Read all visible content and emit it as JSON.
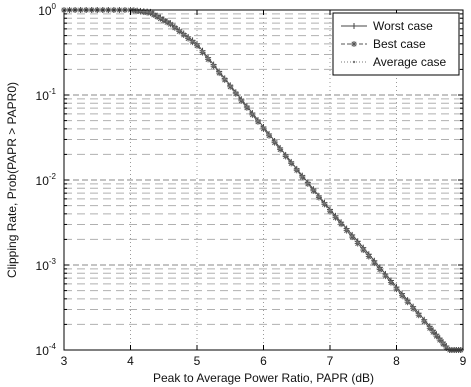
{
  "chart_data": {
    "type": "line",
    "xlabel": "Peak to Average Power Ratio, PAPR (dB)",
    "ylabel": "Clipping Rate, Prob(PAPR > PAPR0)",
    "xlim": [
      3,
      9
    ],
    "ylim": [
      0.0001,
      1
    ],
    "yscale": "log",
    "grid": true,
    "legend_position": "top-right",
    "x_ticks": [
      "3",
      "4",
      "5",
      "6",
      "7",
      "8",
      "9"
    ],
    "y_ticks": [
      {
        "base": "10",
        "exp": "0"
      },
      {
        "base": "10",
        "exp": "-1"
      },
      {
        "base": "10",
        "exp": "-2"
      },
      {
        "base": "10",
        "exp": "-3"
      },
      {
        "base": "10",
        "exp": "-4"
      }
    ],
    "series": [
      {
        "name": "Worst case",
        "marker": "plus",
        "color": "#444444",
        "x": [
          3.0,
          3.5,
          4.0,
          4.3,
          4.6,
          5.0,
          5.5,
          6.0,
          6.5,
          7.0,
          7.5,
          8.0,
          8.5,
          8.8,
          9.0
        ],
        "y": [
          1.0,
          1.0,
          1.0,
          0.95,
          0.7,
          0.4,
          0.13,
          0.042,
          0.0135,
          0.0045,
          0.0016,
          0.00055,
          0.00019,
          0.0001,
          6e-05
        ]
      },
      {
        "name": "Best case",
        "marker": "asterisk",
        "color": "#555555",
        "x": [
          3.0,
          3.5,
          4.0,
          4.3,
          4.6,
          5.0,
          5.5,
          6.0,
          6.5,
          7.0,
          7.5,
          8.0,
          8.5,
          8.8,
          9.0
        ],
        "y": [
          1.0,
          1.0,
          1.0,
          0.92,
          0.68,
          0.38,
          0.125,
          0.04,
          0.013,
          0.0043,
          0.0015,
          0.00052,
          0.00018,
          9.5e-05,
          5.8e-05
        ]
      },
      {
        "name": "Average case",
        "marker": "dot",
        "color": "#777777",
        "x": [
          3.0,
          3.5,
          4.0,
          4.3,
          4.6,
          5.0,
          5.5,
          6.0,
          6.5,
          7.0,
          7.5,
          8.0,
          8.5,
          8.8,
          9.0
        ],
        "y": [
          1.0,
          1.0,
          1.0,
          0.94,
          0.69,
          0.39,
          0.128,
          0.041,
          0.0132,
          0.0044,
          0.00155,
          0.00053,
          0.000185,
          9.8e-05,
          6e-05
        ]
      }
    ]
  }
}
